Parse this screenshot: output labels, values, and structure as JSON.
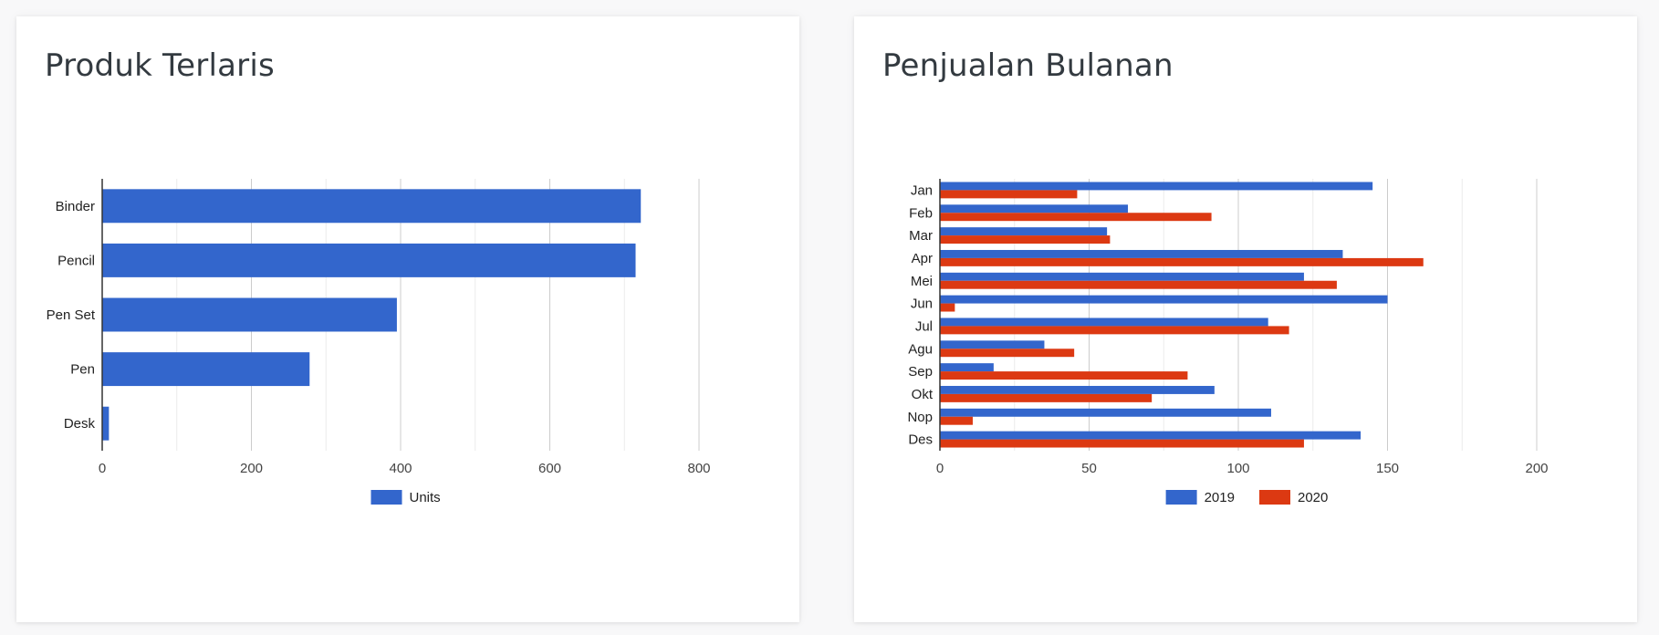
{
  "cards": [
    {
      "title": "Produk Terlaris",
      "chart_data": {
        "type": "bar",
        "orientation": "horizontal",
        "title": "Produk Terlaris",
        "categories": [
          "Binder",
          "Pencil",
          "Pen Set",
          "Pen",
          "Desk"
        ],
        "series": [
          {
            "name": "Units",
            "values": [
              722,
              715,
              395,
              278,
              9
            ],
            "color": "#3366cc"
          }
        ],
        "xlim": [
          0,
          800
        ],
        "xticks": [
          0,
          200,
          400,
          600,
          800
        ],
        "xlabel": "",
        "ylabel": "",
        "grid": true,
        "legend": "bottom"
      }
    },
    {
      "title": "Penjualan Bulanan",
      "chart_data": {
        "type": "bar",
        "orientation": "horizontal",
        "title": "Penjualan Bulanan",
        "categories": [
          "Jan",
          "Feb",
          "Mar",
          "Apr",
          "Mei",
          "Jun",
          "Jul",
          "Agu",
          "Sep",
          "Okt",
          "Nop",
          "Des"
        ],
        "series": [
          {
            "name": "2019",
            "values": [
              145,
              63,
              56,
              135,
              122,
              150,
              110,
              35,
              18,
              92,
              111,
              141
            ],
            "color": "#3366cc"
          },
          {
            "name": "2020",
            "values": [
              46,
              91,
              57,
              162,
              133,
              5,
              117,
              45,
              83,
              71,
              11,
              122
            ],
            "color": "#dc3912"
          }
        ],
        "xlim": [
          0,
          200
        ],
        "xticks": [
          0,
          50,
          100,
          150,
          200
        ],
        "xlabel": "",
        "ylabel": "",
        "grid": true,
        "legend": "bottom"
      }
    }
  ]
}
